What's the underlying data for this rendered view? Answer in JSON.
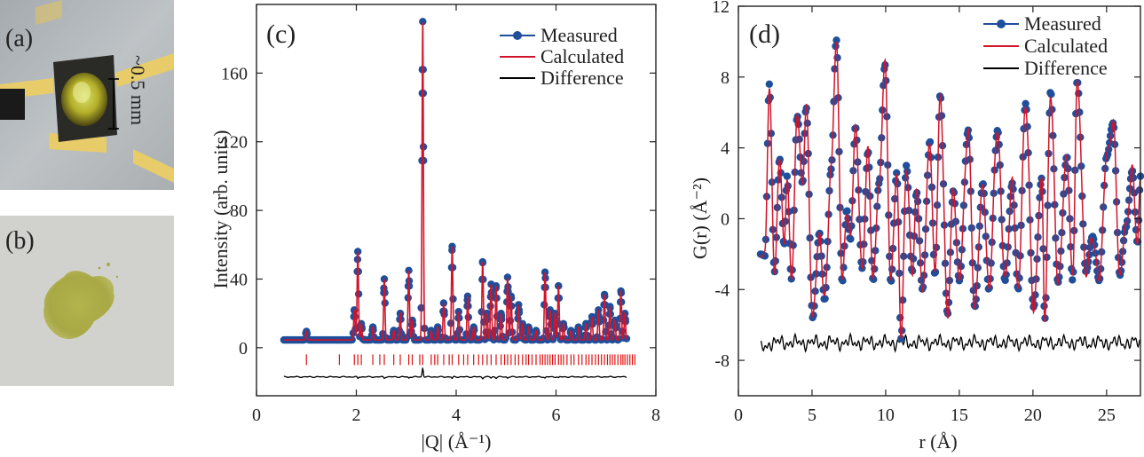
{
  "panels": {
    "a": {
      "label": "(a)",
      "scale_text": "~0.5 mm"
    },
    "b": {
      "label": "(b)"
    }
  },
  "colors": {
    "measured": "#1f4e9a",
    "calculated": "#d2142a",
    "difference": "#000000",
    "ticks": "#e01010"
  },
  "chart_data": [
    {
      "panel_label": "(c)",
      "type": "line",
      "xlabel": "|Q| (Å⁻¹)",
      "ylabel": "Intensity (arb. units)",
      "xlim": [
        0,
        8
      ],
      "ylim": [
        -28,
        200
      ],
      "xticks": [
        0,
        2,
        4,
        6,
        8
      ],
      "yticks": [
        0,
        40,
        80,
        120,
        160
      ],
      "legend": {
        "placement": "top-right",
        "entries": [
          "Measured",
          "Calculated",
          "Difference"
        ]
      },
      "baseline": 4.5,
      "difference_offset": -17,
      "reflection_tick_level": -7,
      "q_range": [
        0.55,
        7.42
      ],
      "peaks": [
        {
          "x": 1.0,
          "y": 9.5
        },
        {
          "x": 1.96,
          "y": 22
        },
        {
          "x": 2.03,
          "y": 56
        },
        {
          "x": 2.1,
          "y": 14
        },
        {
          "x": 2.33,
          "y": 12
        },
        {
          "x": 2.56,
          "y": 40
        },
        {
          "x": 2.75,
          "y": 10
        },
        {
          "x": 2.88,
          "y": 20
        },
        {
          "x": 3.05,
          "y": 45
        },
        {
          "x": 3.12,
          "y": 16
        },
        {
          "x": 3.33,
          "y": 190
        },
        {
          "x": 3.5,
          "y": 10
        },
        {
          "x": 3.63,
          "y": 12
        },
        {
          "x": 3.75,
          "y": 26
        },
        {
          "x": 3.92,
          "y": 59
        },
        {
          "x": 4.05,
          "y": 21
        },
        {
          "x": 4.23,
          "y": 30
        },
        {
          "x": 4.35,
          "y": 12
        },
        {
          "x": 4.53,
          "y": 50
        },
        {
          "x": 4.62,
          "y": 20
        },
        {
          "x": 4.7,
          "y": 37
        },
        {
          "x": 4.8,
          "y": 36
        },
        {
          "x": 4.9,
          "y": 20
        },
        {
          "x": 5.03,
          "y": 41
        },
        {
          "x": 5.1,
          "y": 30
        },
        {
          "x": 5.25,
          "y": 25
        },
        {
          "x": 5.33,
          "y": 14
        },
        {
          "x": 5.45,
          "y": 12
        },
        {
          "x": 5.6,
          "y": 10
        },
        {
          "x": 5.78,
          "y": 44
        },
        {
          "x": 5.88,
          "y": 22
        },
        {
          "x": 5.98,
          "y": 20
        },
        {
          "x": 6.05,
          "y": 36
        },
        {
          "x": 6.15,
          "y": 14
        },
        {
          "x": 6.3,
          "y": 10
        },
        {
          "x": 6.45,
          "y": 12
        },
        {
          "x": 6.6,
          "y": 14
        },
        {
          "x": 6.72,
          "y": 18
        },
        {
          "x": 6.85,
          "y": 22
        },
        {
          "x": 6.97,
          "y": 31
        },
        {
          "x": 7.08,
          "y": 24
        },
        {
          "x": 7.18,
          "y": 16
        },
        {
          "x": 7.3,
          "y": 33
        },
        {
          "x": 7.38,
          "y": 20
        }
      ],
      "reflection_ticks": [
        1.0,
        1.66,
        1.96,
        2.03,
        2.1,
        2.33,
        2.47,
        2.56,
        2.75,
        2.88,
        3.05,
        3.12,
        3.27,
        3.33,
        3.5,
        3.57,
        3.63,
        3.75,
        3.86,
        3.92,
        4.05,
        4.15,
        4.23,
        4.35,
        4.45,
        4.53,
        4.62,
        4.7,
        4.8,
        4.9,
        4.97,
        5.03,
        5.1,
        5.18,
        5.25,
        5.33,
        5.4,
        5.45,
        5.52,
        5.6,
        5.68,
        5.73,
        5.78,
        5.83,
        5.88,
        5.93,
        5.98,
        6.05,
        6.1,
        6.15,
        6.22,
        6.3,
        6.36,
        6.45,
        6.52,
        6.6,
        6.66,
        6.72,
        6.79,
        6.85,
        6.91,
        6.97,
        7.03,
        7.08,
        7.13,
        7.18,
        7.24,
        7.3,
        7.34,
        7.38,
        7.43,
        7.48,
        7.53,
        7.58
      ]
    },
    {
      "panel_label": "(d)",
      "type": "line",
      "xlabel": "r (Å)",
      "ylabel": "G(r) (Å⁻²)",
      "xlim": [
        0,
        27.3
      ],
      "ylim": [
        -10,
        12
      ],
      "xticks": [
        0,
        5,
        10,
        15,
        20,
        25
      ],
      "yticks": [
        -8,
        -4,
        0,
        4,
        8,
        12
      ],
      "legend": {
        "placement": "top-right",
        "entries": [
          "Measured",
          "Calculated",
          "Difference"
        ]
      },
      "difference_offset": -7,
      "r_range": [
        1.5,
        27.3
      ],
      "extrema": [
        {
          "x": 1.5,
          "y": -2.0
        },
        {
          "x": 1.8,
          "y": -2.1
        },
        {
          "x": 2.1,
          "y": 7.6
        },
        {
          "x": 2.45,
          "y": -3.0
        },
        {
          "x": 2.8,
          "y": 3.4
        },
        {
          "x": 3.1,
          "y": -1.5
        },
        {
          "x": 3.3,
          "y": 2.4
        },
        {
          "x": 3.6,
          "y": -3.4
        },
        {
          "x": 4.0,
          "y": 5.8
        },
        {
          "x": 4.35,
          "y": 2.0
        },
        {
          "x": 4.6,
          "y": 6.3
        },
        {
          "x": 5.05,
          "y": -5.6
        },
        {
          "x": 5.5,
          "y": -0.8
        },
        {
          "x": 5.85,
          "y": -4.6
        },
        {
          "x": 6.3,
          "y": 2.8
        },
        {
          "x": 6.65,
          "y": 10.1
        },
        {
          "x": 7.05,
          "y": -3.6
        },
        {
          "x": 7.35,
          "y": 0.5
        },
        {
          "x": 7.6,
          "y": -1.2
        },
        {
          "x": 7.95,
          "y": 5.2
        },
        {
          "x": 8.4,
          "y": -2.8
        },
        {
          "x": 8.8,
          "y": 3.8
        },
        {
          "x": 9.15,
          "y": -3.5
        },
        {
          "x": 9.55,
          "y": 2.0
        },
        {
          "x": 9.95,
          "y": 8.7
        },
        {
          "x": 10.35,
          "y": -3.6
        },
        {
          "x": 10.75,
          "y": 2.6
        },
        {
          "x": 11.05,
          "y": -6.8
        },
        {
          "x": 11.4,
          "y": 3.0
        },
        {
          "x": 11.8,
          "y": -3.0
        },
        {
          "x": 12.1,
          "y": 1.5
        },
        {
          "x": 12.5,
          "y": -4.0
        },
        {
          "x": 13.0,
          "y": 4.4
        },
        {
          "x": 13.35,
          "y": -3.2
        },
        {
          "x": 13.7,
          "y": 7.0
        },
        {
          "x": 14.2,
          "y": -5.4
        },
        {
          "x": 14.6,
          "y": 1.6
        },
        {
          "x": 15.0,
          "y": -3.5
        },
        {
          "x": 15.6,
          "y": 5.0
        },
        {
          "x": 16.05,
          "y": -5.0
        },
        {
          "x": 16.6,
          "y": 2.0
        },
        {
          "x": 17.0,
          "y": -4.0
        },
        {
          "x": 17.6,
          "y": 5.0
        },
        {
          "x": 18.1,
          "y": -3.5
        },
        {
          "x": 18.6,
          "y": 2.0
        },
        {
          "x": 19.0,
          "y": -4.0
        },
        {
          "x": 19.5,
          "y": 6.5
        },
        {
          "x": 20.05,
          "y": -5.0
        },
        {
          "x": 20.6,
          "y": 2.3
        },
        {
          "x": 20.8,
          "y": -5.7
        },
        {
          "x": 21.2,
          "y": 7.2
        },
        {
          "x": 21.7,
          "y": -3.6
        },
        {
          "x": 22.3,
          "y": 3.5
        },
        {
          "x": 22.7,
          "y": -3.5
        },
        {
          "x": 23.0,
          "y": 7.8
        },
        {
          "x": 23.6,
          "y": -3.0
        },
        {
          "x": 24.05,
          "y": -1.0
        },
        {
          "x": 24.5,
          "y": -3.5
        },
        {
          "x": 25.0,
          "y": 3.5
        },
        {
          "x": 25.45,
          "y": 5.4
        },
        {
          "x": 25.9,
          "y": -3.2
        },
        {
          "x": 26.3,
          "y": -0.5
        },
        {
          "x": 26.75,
          "y": 2.7
        },
        {
          "x": 27.1,
          "y": -1.4
        },
        {
          "x": 27.3,
          "y": 2.4
        }
      ]
    }
  ]
}
